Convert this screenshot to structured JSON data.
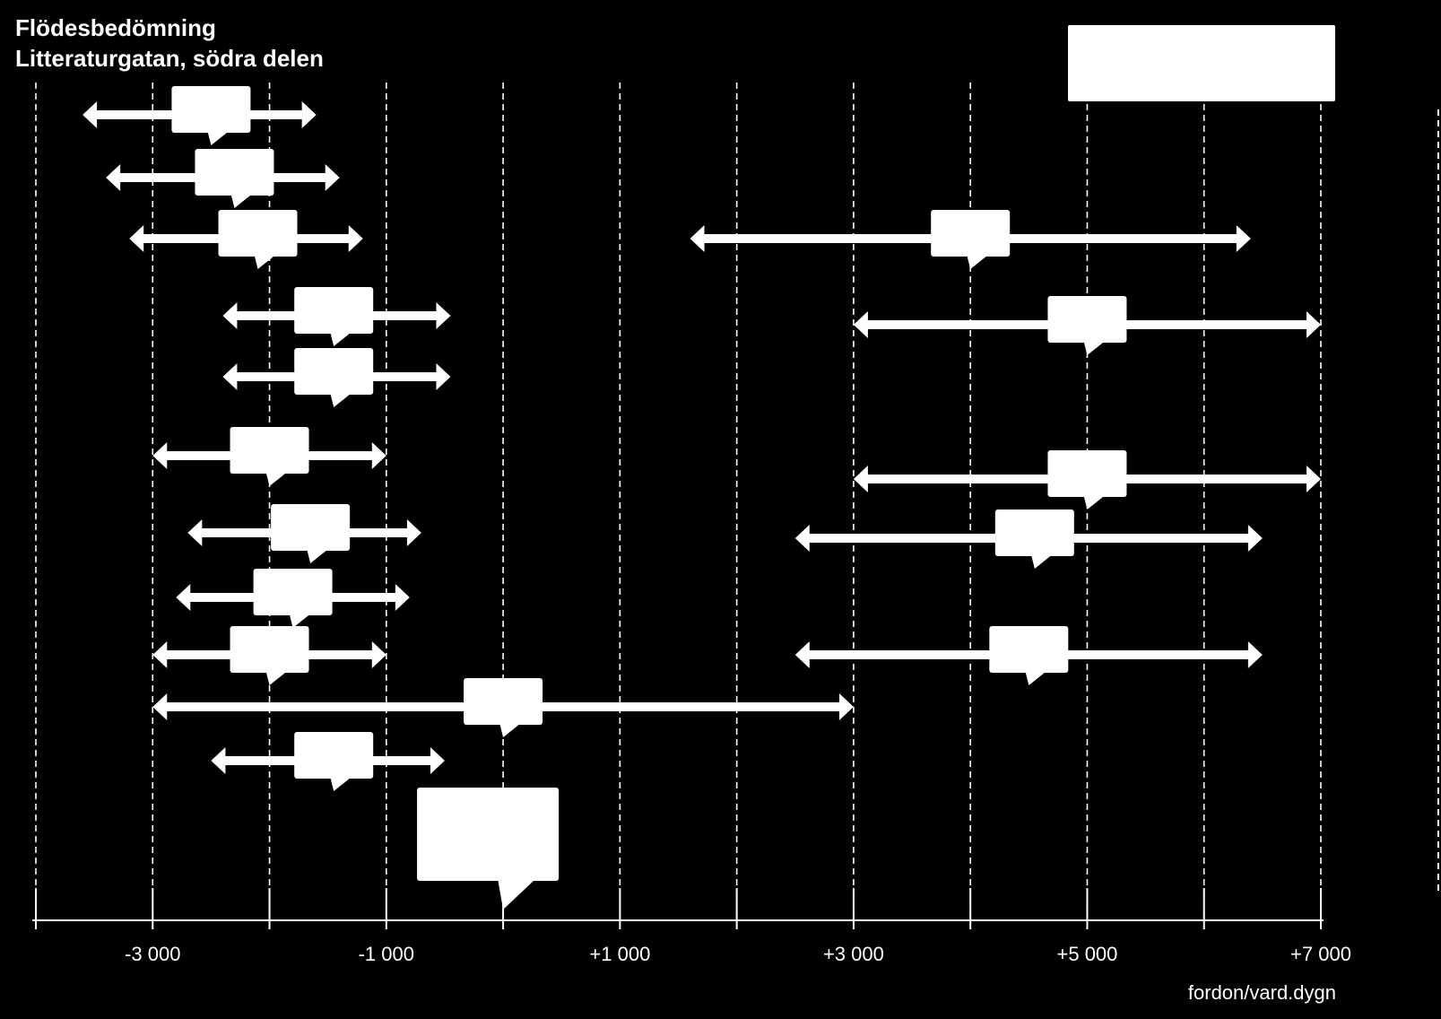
{
  "title": {
    "line1": "Flödesbedömning",
    "line2": "Litteraturgatan, södra delen"
  },
  "chart_data": {
    "type": "range",
    "xlim": [
      -4000,
      7000
    ],
    "grid": true,
    "tick_labels": [
      {
        "value": -3000,
        "label": "-3 000"
      },
      {
        "value": -1000,
        "label": "-1 000"
      },
      {
        "value": 1000,
        "label": "+1 000"
      },
      {
        "value": 3000,
        "label": "+3 000"
      },
      {
        "value": 5000,
        "label": "+5 000"
      },
      {
        "value": 7000,
        "label": "+7 000"
      }
    ],
    "unit": "fordon/vard.dygn",
    "ranges": [
      {
        "low": -3600,
        "high": -1600,
        "mid": -2500
      },
      {
        "low": -3400,
        "high": -1400,
        "mid": -2300
      },
      {
        "low": -3200,
        "high": -1200,
        "mid": -2100
      },
      {
        "low": 1600,
        "high": 6400,
        "mid": 4000
      },
      {
        "low": -2400,
        "high": -450,
        "mid": -1450
      },
      {
        "low": 3000,
        "high": 7000,
        "mid": 5000
      },
      {
        "low": -2400,
        "high": -450,
        "mid": -1450
      },
      {
        "low": -3000,
        "high": -1000,
        "mid": -2000
      },
      {
        "low": 3000,
        "high": 7000,
        "mid": 5000
      },
      {
        "low": -2700,
        "high": -700,
        "mid": -1650
      },
      {
        "low": 2500,
        "high": 6500,
        "mid": 4550
      },
      {
        "low": -2800,
        "high": -800,
        "mid": -1800
      },
      {
        "low": -3000,
        "high": -1000,
        "mid": -2000
      },
      {
        "low": 2500,
        "high": 6500,
        "mid": 4500
      },
      {
        "low": -3000,
        "high": 3000,
        "mid": 0
      },
      {
        "low": -2500,
        "high": -500,
        "mid": -1450
      }
    ],
    "main_marker": {
      "value": 0
    }
  }
}
